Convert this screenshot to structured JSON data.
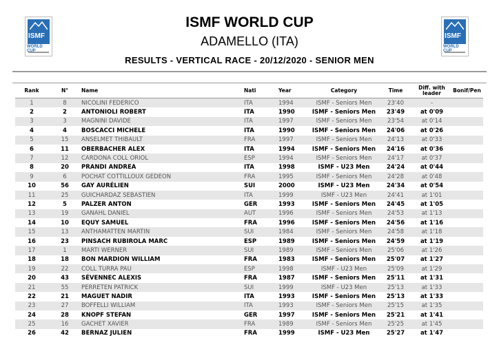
{
  "header": {
    "logo_text": "ISMF WORLD CUP",
    "title": "ISMF WORLD CUP",
    "subtitle": "ADAMELLO (ITA)",
    "results_line": "RESULTS - VERTICAL RACE - 20/12/2020 - SENIOR MEN",
    "brand_color": "#2a6fb5"
  },
  "table": {
    "columns": [
      "Rank",
      "N°",
      "Name",
      "Nati",
      "Year",
      "Category",
      "Time",
      "Diff. with leader",
      "Bonif/Pen"
    ],
    "rows": [
      [
        "1",
        "8",
        "NICOLINI FEDERICO",
        "ITA",
        "1994",
        "ISMF - Seniors Men",
        "23'40",
        "-",
        ""
      ],
      [
        "2",
        "2",
        "ANTONIOLI ROBERT",
        "ITA",
        "1990",
        "ISMF - Seniors Men",
        "23'49",
        "at 0'09",
        ""
      ],
      [
        "3",
        "3",
        "MAGNINI DAVIDE",
        "ITA",
        "1997",
        "ISMF - Seniors Men",
        "23'54",
        "at 0'14",
        ""
      ],
      [
        "4",
        "4",
        "BOSCACCI MICHELE",
        "ITA",
        "1990",
        "ISMF - Seniors Men",
        "24'06",
        "at 0'26",
        ""
      ],
      [
        "5",
        "15",
        "ANSELMET THIBAULT",
        "FRA",
        "1997",
        "ISMF - Seniors Men",
        "24'13",
        "at 0'33",
        ""
      ],
      [
        "6",
        "11",
        "OBERBACHER ALEX",
        "ITA",
        "1994",
        "ISMF - Seniors Men",
        "24'16",
        "at 0'36",
        ""
      ],
      [
        "7",
        "12",
        "CARDONA COLL ORIOL",
        "ESP",
        "1994",
        "ISMF - Seniors Men",
        "24'17",
        "at 0'37",
        ""
      ],
      [
        "8",
        "20",
        "PRANDI ANDREA",
        "ITA",
        "1998",
        "ISMF - U23 Men",
        "24'24",
        "at 0'44",
        ""
      ],
      [
        "9",
        "6",
        "POCHAT COTTILLOUX GEDEON",
        "FRA",
        "1995",
        "ISMF - Seniors Men",
        "24'28",
        "at 0'48",
        ""
      ],
      [
        "10",
        "56",
        "GAY AURÉLIEN",
        "SUI",
        "2000",
        "ISMF - U23 Men",
        "24'34",
        "at 0'54",
        ""
      ],
      [
        "11",
        "25",
        "GUICHARDAZ SEBASTIEN",
        "ITA",
        "1999",
        "ISMF - U23 Men",
        "24'41",
        "at 1'01",
        ""
      ],
      [
        "12",
        "5",
        "PALZER ANTON",
        "GER",
        "1993",
        "ISMF - Seniors Men",
        "24'45",
        "at 1'05",
        ""
      ],
      [
        "13",
        "19",
        "GANAHL DANIEL",
        "AUT",
        "1996",
        "ISMF - Seniors Men",
        "24'53",
        "at 1'13",
        ""
      ],
      [
        "14",
        "10",
        "EQUY SAMUEL",
        "FRA",
        "1996",
        "ISMF - Seniors Men",
        "24'56",
        "at 1'16",
        ""
      ],
      [
        "15",
        "13",
        "ANTHAMATTEN MARTIN",
        "SUI",
        "1984",
        "ISMF - Seniors Men",
        "24'58",
        "at 1'18",
        ""
      ],
      [
        "16",
        "23",
        "PINSACH RUBIROLA MARC",
        "ESP",
        "1989",
        "ISMF - Seniors Men",
        "24'59",
        "at 1'19",
        ""
      ],
      [
        "17",
        "1",
        "MARTI WERNER",
        "SUI",
        "1989",
        "ISMF - Seniors Men",
        "25'06",
        "at 1'26",
        ""
      ],
      [
        "18",
        "18",
        "BON MARDION WILLIAM",
        "FRA",
        "1983",
        "ISMF - Seniors Men",
        "25'07",
        "at 1'27",
        ""
      ],
      [
        "19",
        "22",
        "COLL TURRA PAU",
        "ESP",
        "1998",
        "ISMF - U23 Men",
        "25'09",
        "at 1'29",
        ""
      ],
      [
        "20",
        "43",
        "SÉVENNEC ALEXIS",
        "FRA",
        "1987",
        "ISMF - Seniors Men",
        "25'11",
        "at 1'31",
        ""
      ],
      [
        "21",
        "55",
        "PERRETEN PATRICK",
        "SUI",
        "1999",
        "ISMF - U23 Men",
        "25'13",
        "at 1'33",
        ""
      ],
      [
        "22",
        "21",
        "MAGUET NADIR",
        "ITA",
        "1993",
        "ISMF - Seniors Men",
        "25'13",
        "at 1'33",
        ""
      ],
      [
        "23",
        "27",
        "BOFFELLI WILLIAM",
        "ITA",
        "1993",
        "ISMF - Seniors Men",
        "25'15",
        "at 1'35",
        ""
      ],
      [
        "24",
        "28",
        "KNOPF STEFAN",
        "GER",
        "1997",
        "ISMF - Seniors Men",
        "25'21",
        "at 1'41",
        ""
      ],
      [
        "25",
        "16",
        "GACHET XAVIER",
        "FRA",
        "1989",
        "ISMF - Seniors Men",
        "25'25",
        "at 1'45",
        ""
      ],
      [
        "26",
        "42",
        "BERNAZ JULIEN",
        "FRA",
        "1999",
        "ISMF - U23 Men",
        "25'27",
        "at 1'47",
        ""
      ]
    ]
  }
}
